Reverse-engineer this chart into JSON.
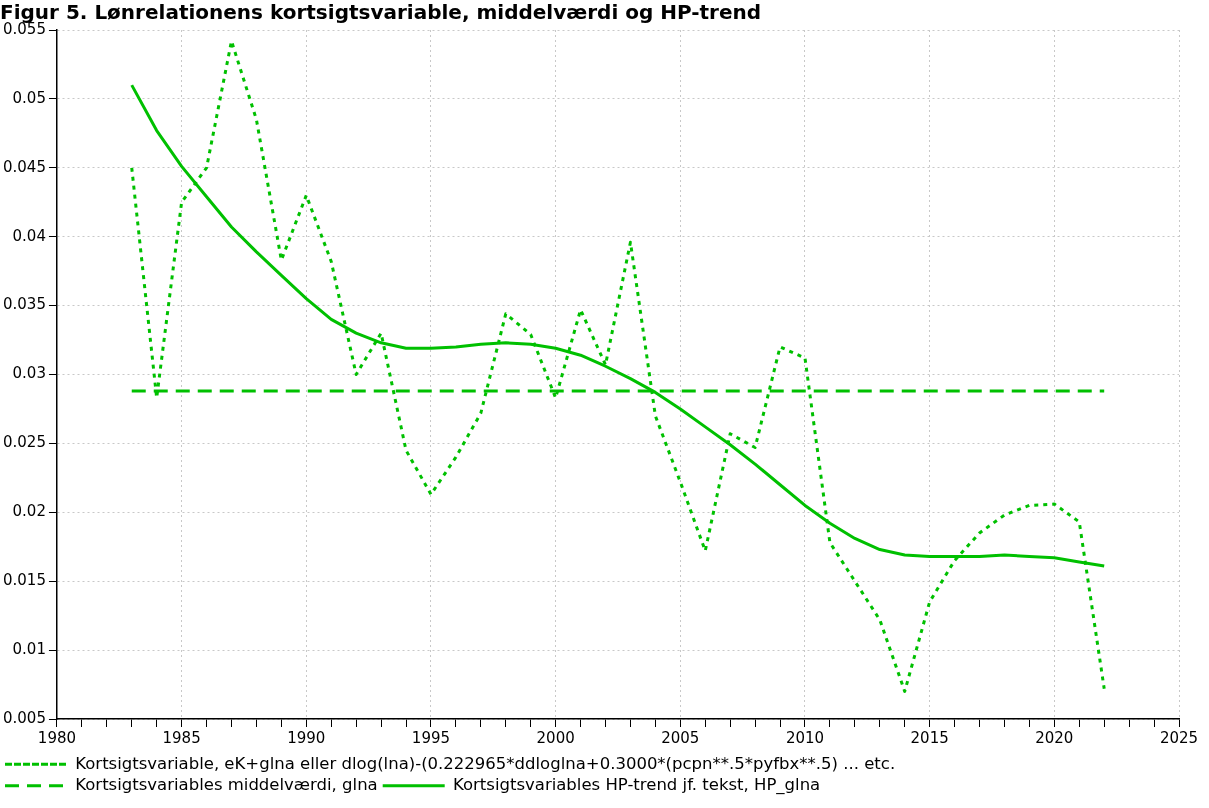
{
  "chart_data": {
    "type": "line",
    "title": "Figur 5. Lønrelationens kortsigtsvariable, middelværdi og HP-trend",
    "x": [
      1983,
      1984,
      1985,
      1986,
      1987,
      1988,
      1989,
      1990,
      1991,
      1992,
      1993,
      1994,
      1995,
      1996,
      1997,
      1998,
      1999,
      2000,
      2001,
      2002,
      2003,
      2004,
      2005,
      2006,
      2007,
      2008,
      2009,
      2010,
      2011,
      2012,
      2013,
      2014,
      2015,
      2016,
      2017,
      2018,
      2019,
      2020,
      2021,
      2022
    ],
    "series": [
      {
        "name": "Kortsigtsvariable, eK+glna eller dlog(lna)-(0.222965*ddloglna+0.3000*(pcpn**.5*pyfbx**.5) ... etc.",
        "color": "#00c000",
        "line_style": "dotted",
        "values": [
          0.045,
          0.0283,
          0.0425,
          0.045,
          0.0542,
          0.0485,
          0.0383,
          0.043,
          0.0382,
          0.03,
          0.033,
          0.0245,
          0.0213,
          0.024,
          0.0272,
          0.0344,
          0.0329,
          0.0283,
          0.0347,
          0.0307,
          0.0396,
          0.027,
          0.0222,
          0.0172,
          0.0257,
          0.0247,
          0.032,
          0.0312,
          0.0178,
          0.015,
          0.0122,
          0.007,
          0.0135,
          0.0165,
          0.0185,
          0.0198,
          0.0205,
          0.0206,
          0.0193,
          0.0072
        ]
      },
      {
        "name": "Kortsigtsvariables middelværdi, glna",
        "color": "#00c000",
        "line_style": "dashed",
        "x": [
          1983,
          2022
        ],
        "values": [
          0.0288,
          0.0288
        ]
      },
      {
        "name": "Kortsigtsvariables HP-trend jf. tekst, HP_glna",
        "color": "#00c000",
        "line_style": "solid",
        "values": [
          0.051,
          0.0477,
          0.0451,
          0.0429,
          0.0407,
          0.0389,
          0.0372,
          0.0355,
          0.034,
          0.033,
          0.0323,
          0.0319,
          0.0319,
          0.032,
          0.0322,
          0.0323,
          0.0322,
          0.0319,
          0.0314,
          0.0306,
          0.0297,
          0.0287,
          0.0275,
          0.0262,
          0.0249,
          0.0235,
          0.022,
          0.0205,
          0.0192,
          0.0181,
          0.0173,
          0.0169,
          0.0168,
          0.0168,
          0.0168,
          0.0169,
          0.0168,
          0.0167,
          0.0164,
          0.0161
        ]
      }
    ],
    "xlim": [
      1980,
      2025
    ],
    "xticks": [
      1980,
      {
        "value": 1981,
        "label": null
      },
      {
        "value": 1982,
        "label": null
      },
      {
        "value": 1983,
        "label": null
      },
      {
        "value": 1984,
        "label": null
      },
      1985,
      {
        "value": 1986,
        "label": null
      },
      {
        "value": 1987,
        "label": null
      },
      {
        "value": 1988,
        "label": null
      },
      {
        "value": 1989,
        "label": null
      },
      1990,
      {
        "value": 1991,
        "label": null
      },
      {
        "value": 1992,
        "label": null
      },
      {
        "value": 1993,
        "label": null
      },
      {
        "value": 1994,
        "label": null
      },
      1995,
      {
        "value": 1996,
        "label": null
      },
      {
        "value": 1997,
        "label": null
      },
      {
        "value": 1998,
        "label": null
      },
      {
        "value": 1999,
        "label": null
      },
      2000,
      {
        "value": 2001,
        "label": null
      },
      {
        "value": 2002,
        "label": null
      },
      {
        "value": 2003,
        "label": null
      },
      {
        "value": 2004,
        "label": null
      },
      2005,
      {
        "value": 2006,
        "label": null
      },
      {
        "value": 2007,
        "label": null
      },
      {
        "value": 2008,
        "label": null
      },
      {
        "value": 2009,
        "label": null
      },
      2010,
      {
        "value": 2011,
        "label": null
      },
      {
        "value": 2012,
        "label": null
      },
      {
        "value": 2013,
        "label": null
      },
      {
        "value": 2014,
        "label": null
      },
      2015,
      {
        "value": 2016,
        "label": null
      },
      {
        "value": 2017,
        "label": null
      },
      {
        "value": 2018,
        "label": null
      },
      {
        "value": 2019,
        "label": null
      },
      2020,
      {
        "value": 2021,
        "label": null
      },
      {
        "value": 2022,
        "label": null
      },
      {
        "value": 2023,
        "label": null
      },
      {
        "value": 2024,
        "label": null
      },
      2025
    ],
    "ylim": [
      0.005,
      0.055
    ],
    "yticks": [
      0.005,
      0.01,
      0.015,
      0.02,
      0.025,
      0.03,
      0.035,
      0.04,
      0.045,
      0.05,
      0.055
    ],
    "grid": true,
    "legend": "bottom",
    "marker": "none"
  }
}
